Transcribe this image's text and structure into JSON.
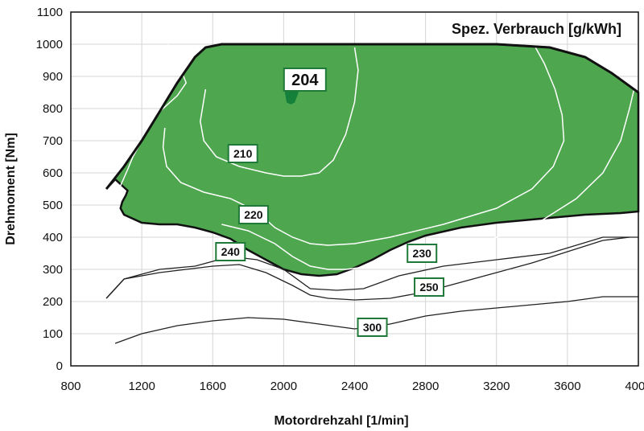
{
  "chart_data": {
    "type": "contour",
    "title": "Spez. Verbrauch [g/kWh]",
    "xlabel": "Motordrehzahl [1/min]",
    "ylabel": "Drehmoment [Nm]",
    "xlim": [
      800,
      4000
    ],
    "ylim": [
      0,
      1100
    ],
    "xticks": [
      "800",
      "1200",
      "1600",
      "2000",
      "2400",
      "2800",
      "3200",
      "3600",
      "4000"
    ],
    "yticks": [
      "0",
      "100",
      "200",
      "300",
      "400",
      "500",
      "600",
      "700",
      "800",
      "900",
      "1000",
      "1100"
    ],
    "grid": true,
    "colors": {
      "fill": "#4ea74f",
      "min_zone": "#15803a",
      "label_border": "#1f7a3a",
      "line_inside": "#ffffff",
      "line_outside": "#222222"
    },
    "full_load_curve": [
      [
        1000,
        550
      ],
      [
        1100,
        620
      ],
      [
        1200,
        700
      ],
      [
        1300,
        790
      ],
      [
        1400,
        880
      ],
      [
        1500,
        960
      ],
      [
        1560,
        990
      ],
      [
        1650,
        1000
      ],
      [
        2000,
        1000
      ],
      [
        2400,
        1000
      ],
      [
        2800,
        1000
      ],
      [
        3200,
        1000
      ],
      [
        3500,
        990
      ],
      [
        3700,
        960
      ],
      [
        3850,
        910
      ],
      [
        4000,
        850
      ]
    ],
    "region_lower_boundary": [
      [
        4000,
        480
      ],
      [
        3900,
        475
      ],
      [
        3700,
        470
      ],
      [
        3500,
        460
      ],
      [
        3400,
        455
      ],
      [
        3200,
        445
      ],
      [
        3000,
        430
      ],
      [
        2800,
        405
      ],
      [
        2700,
        385
      ],
      [
        2600,
        360
      ],
      [
        2500,
        330
      ],
      [
        2400,
        305
      ],
      [
        2300,
        285
      ],
      [
        2200,
        280
      ],
      [
        2100,
        285
      ],
      [
        2000,
        300
      ],
      [
        1900,
        330
      ],
      [
        1800,
        360
      ],
      [
        1700,
        395
      ],
      [
        1600,
        415
      ],
      [
        1500,
        430
      ],
      [
        1400,
        440
      ],
      [
        1300,
        440
      ],
      [
        1200,
        445
      ],
      [
        1100,
        470
      ],
      [
        1080,
        490
      ],
      [
        1090,
        510
      ],
      [
        1110,
        530
      ],
      [
        1120,
        545
      ],
      [
        1090,
        560
      ],
      [
        1050,
        580
      ]
    ],
    "contours": [
      {
        "label": "204",
        "points": [
          [
            2020,
            900
          ],
          [
            2060,
            900
          ],
          [
            2080,
            880
          ],
          [
            2080,
            850
          ],
          [
            2060,
            820
          ],
          [
            2040,
            815
          ],
          [
            2020,
            820
          ],
          [
            2010,
            850
          ],
          [
            2010,
            880
          ],
          [
            2020,
            900
          ]
        ]
      },
      {
        "label": "210",
        "points": [
          [
            1560,
            860
          ],
          [
            1530,
            760
          ],
          [
            1550,
            700
          ],
          [
            1620,
            650
          ],
          [
            1750,
            620
          ],
          [
            1900,
            600
          ],
          [
            2000,
            590
          ],
          [
            2100,
            590
          ],
          [
            2200,
            600
          ],
          [
            2280,
            640
          ],
          [
            2350,
            720
          ],
          [
            2400,
            820
          ],
          [
            2420,
            920
          ],
          [
            2400,
            990
          ]
        ]
      },
      {
        "label": "220",
        "points": [
          [
            1330,
            740
          ],
          [
            1320,
            680
          ],
          [
            1340,
            620
          ],
          [
            1420,
            570
          ],
          [
            1550,
            540
          ],
          [
            1700,
            520
          ],
          [
            1850,
            480
          ],
          [
            1950,
            430
          ],
          [
            2050,
            400
          ],
          [
            2150,
            380
          ],
          [
            2250,
            375
          ],
          [
            2400,
            380
          ],
          [
            2600,
            400
          ],
          [
            2900,
            440
          ],
          [
            3200,
            490
          ],
          [
            3400,
            550
          ],
          [
            3520,
            620
          ],
          [
            3580,
            700
          ],
          [
            3570,
            780
          ],
          [
            3530,
            860
          ],
          [
            3470,
            940
          ],
          [
            3420,
            990
          ]
        ]
      },
      {
        "label": "230",
        "points": [
          [
            1080,
            560
          ],
          [
            1120,
            610
          ],
          [
            1150,
            650
          ],
          [
            1200,
            700
          ],
          [
            1300,
            790
          ],
          [
            1400,
            840
          ],
          [
            1450,
            880
          ],
          [
            1400,
            950
          ],
          [
            1350,
            1000
          ]
        ]
      },
      {
        "label": "230",
        "points": [
          [
            1650,
            440
          ],
          [
            1800,
            420
          ],
          [
            1950,
            380
          ],
          [
            2050,
            340
          ],
          [
            2150,
            310
          ],
          [
            2250,
            300
          ],
          [
            2350,
            300
          ],
          [
            2500,
            310
          ],
          [
            2650,
            320
          ],
          [
            2800,
            335
          ],
          [
            3000,
            360
          ],
          [
            3200,
            400
          ],
          [
            3450,
            450
          ],
          [
            3650,
            520
          ],
          [
            3800,
            600
          ],
          [
            3900,
            700
          ],
          [
            3950,
            800
          ],
          [
            3980,
            870
          ]
        ]
      },
      {
        "label": "240",
        "points": [
          [
            1000,
            210
          ],
          [
            1100,
            270
          ],
          [
            1300,
            300
          ],
          [
            1500,
            310
          ],
          [
            1700,
            340
          ],
          [
            1850,
            330
          ],
          [
            2000,
            300
          ],
          [
            2150,
            240
          ],
          [
            2300,
            235
          ],
          [
            2450,
            240
          ],
          [
            2650,
            280
          ],
          [
            2900,
            310
          ],
          [
            3200,
            330
          ],
          [
            3500,
            350
          ],
          [
            3800,
            400
          ],
          [
            4000,
            400
          ]
        ]
      },
      {
        "label": "250",
        "points": [
          [
            1000,
            210
          ],
          [
            1100,
            270
          ],
          [
            1300,
            290
          ],
          [
            1450,
            300
          ],
          [
            1600,
            310
          ],
          [
            1750,
            315
          ],
          [
            1900,
            290
          ],
          [
            2050,
            250
          ],
          [
            2150,
            220
          ],
          [
            2250,
            210
          ],
          [
            2400,
            205
          ],
          [
            2600,
            210
          ],
          [
            2800,
            230
          ],
          [
            3000,
            260
          ],
          [
            3200,
            290
          ],
          [
            3400,
            320
          ],
          [
            3600,
            355
          ],
          [
            3800,
            390
          ],
          [
            3950,
            400
          ]
        ]
      },
      {
        "label": "300",
        "points": [
          [
            1050,
            70
          ],
          [
            1200,
            100
          ],
          [
            1400,
            125
          ],
          [
            1600,
            140
          ],
          [
            1800,
            150
          ],
          [
            2000,
            145
          ],
          [
            2200,
            130
          ],
          [
            2400,
            115
          ],
          [
            2600,
            130
          ],
          [
            2800,
            155
          ],
          [
            3000,
            170
          ],
          [
            3200,
            180
          ],
          [
            3400,
            190
          ],
          [
            3600,
            200
          ],
          [
            3800,
            215
          ],
          [
            4000,
            215
          ]
        ]
      }
    ],
    "labels": [
      {
        "text": "204",
        "x": 2120,
        "y": 890,
        "size": "large"
      },
      {
        "text": "210",
        "x": 1770,
        "y": 660
      },
      {
        "text": "220",
        "x": 1830,
        "y": 470
      },
      {
        "text": "240",
        "x": 1700,
        "y": 355
      },
      {
        "text": "230",
        "x": 2780,
        "y": 350
      },
      {
        "text": "250",
        "x": 2820,
        "y": 245
      },
      {
        "text": "300",
        "x": 2500,
        "y": 120
      }
    ]
  }
}
